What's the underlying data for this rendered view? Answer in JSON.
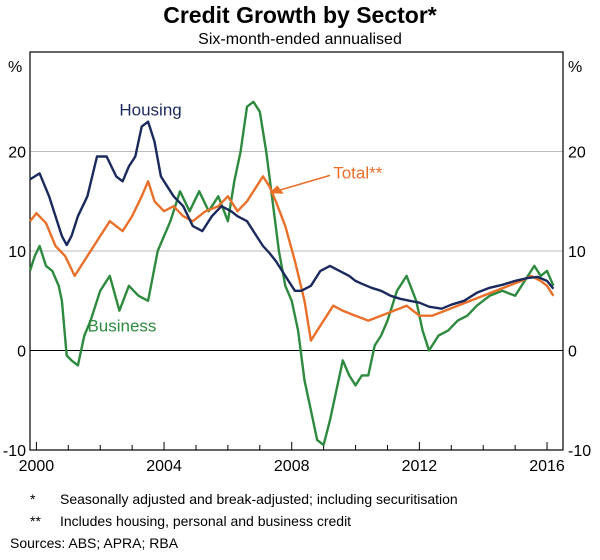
{
  "chart_data": {
    "type": "line",
    "title": "Credit Growth by Sector*",
    "subtitle": "Six-month-ended annualised",
    "ylabel_left": "%",
    "ylabel_right": "%",
    "xlim": [
      1999.8,
      2016.5
    ],
    "ylim": [
      -10,
      30
    ],
    "x_ticks": [
      2000,
      2004,
      2008,
      2012,
      2016
    ],
    "y_ticks": [
      -10,
      0,
      10,
      20
    ],
    "grid": true,
    "series": [
      {
        "name": "Housing",
        "color": "#1b2a5c",
        "x": [
          1999.8,
          2000.1,
          2000.4,
          2000.6,
          2000.8,
          2000.95,
          2001.1,
          2001.3,
          2001.6,
          2001.9,
          2002.2,
          2002.5,
          2002.7,
          2002.9,
          2003.1,
          2003.3,
          2003.5,
          2003.7,
          2003.9,
          2004.1,
          2004.3,
          2004.6,
          2004.9,
          2005.2,
          2005.5,
          2005.8,
          2006.1,
          2006.3,
          2006.6,
          2006.9,
          2007.1,
          2007.3,
          2007.5,
          2007.7,
          2007.9,
          2008.1,
          2008.3,
          2008.6,
          2008.9,
          2009.2,
          2009.5,
          2009.8,
          2010.0,
          2010.2,
          2010.5,
          2010.8,
          2011.1,
          2011.4,
          2011.7,
          2012.0,
          2012.3,
          2012.7,
          2013.0,
          2013.4,
          2013.8,
          2014.2,
          2014.6,
          2015.0,
          2015.4,
          2015.7,
          2016.0,
          2016.2
        ],
        "y": [
          17.2,
          17.8,
          15.5,
          13.5,
          11.5,
          10.6,
          11.5,
          13.5,
          15.5,
          19.5,
          19.5,
          17.5,
          17.0,
          18.5,
          19.5,
          22.5,
          23.0,
          21.0,
          17.5,
          16.5,
          15.5,
          14.5,
          12.5,
          12.0,
          13.5,
          14.5,
          14.0,
          13.5,
          13.0,
          11.5,
          10.5,
          9.8,
          9.0,
          8.0,
          7.0,
          6.0,
          6.0,
          6.5,
          8.0,
          8.5,
          8.0,
          7.5,
          7.0,
          6.7,
          6.3,
          6.0,
          5.5,
          5.2,
          5.0,
          4.8,
          4.4,
          4.2,
          4.6,
          5.0,
          5.8,
          6.3,
          6.6,
          7.0,
          7.3,
          7.4,
          7.0,
          6.2
        ]
      },
      {
        "name": "Total**",
        "color": "#e8702a",
        "x": [
          1999.8,
          2000.0,
          2000.3,
          2000.6,
          2000.9,
          2001.2,
          2001.6,
          2001.9,
          2002.3,
          2002.7,
          2003.0,
          2003.3,
          2003.5,
          2003.7,
          2004.0,
          2004.3,
          2004.6,
          2004.9,
          2005.3,
          2005.7,
          2006.0,
          2006.3,
          2006.6,
          2006.9,
          2007.1,
          2007.3,
          2007.5,
          2007.8,
          2008.1,
          2008.4,
          2008.6,
          2008.8,
          2009.0,
          2009.3,
          2009.6,
          2010.0,
          2010.4,
          2010.8,
          2011.2,
          2011.6,
          2012.0,
          2012.4,
          2012.8,
          2013.2,
          2013.6,
          2014.0,
          2014.4,
          2014.8,
          2015.2,
          2015.5,
          2015.8,
          2016.0,
          2016.2
        ],
        "y": [
          13.0,
          13.8,
          12.8,
          10.5,
          9.5,
          7.5,
          9.5,
          11.0,
          13.0,
          12.0,
          13.5,
          15.5,
          17.0,
          15.0,
          14.0,
          14.5,
          13.5,
          13.0,
          14.0,
          14.5,
          15.5,
          14.0,
          15.0,
          16.5,
          17.5,
          16.5,
          15.0,
          12.5,
          9.0,
          5.0,
          1.0,
          2.0,
          3.0,
          4.5,
          4.0,
          3.5,
          3.0,
          3.5,
          4.0,
          4.5,
          3.5,
          3.5,
          4.0,
          4.5,
          5.0,
          5.5,
          6.0,
          6.5,
          7.0,
          7.5,
          7.0,
          6.5,
          5.5
        ]
      },
      {
        "name": "Business",
        "color": "#2d8a3e",
        "x": [
          1999.8,
          1999.95,
          2000.1,
          2000.3,
          2000.5,
          2000.7,
          2000.8,
          2000.95,
          2001.1,
          2001.3,
          2001.5,
          2001.7,
          2002.0,
          2002.3,
          2002.6,
          2002.9,
          2003.2,
          2003.5,
          2003.8,
          2004.0,
          2004.2,
          2004.5,
          2004.8,
          2005.1,
          2005.4,
          2005.7,
          2006.0,
          2006.2,
          2006.4,
          2006.6,
          2006.8,
          2007.0,
          2007.2,
          2007.4,
          2007.6,
          2007.8,
          2008.0,
          2008.2,
          2008.4,
          2008.6,
          2008.8,
          2009.0,
          2009.2,
          2009.4,
          2009.6,
          2009.8,
          2010.0,
          2010.2,
          2010.4,
          2010.6,
          2010.8,
          2011.0,
          2011.3,
          2011.6,
          2011.9,
          2012.1,
          2012.3,
          2012.6,
          2012.9,
          2013.2,
          2013.5,
          2013.8,
          2014.2,
          2014.6,
          2015.0,
          2015.3,
          2015.6,
          2015.8,
          2016.0,
          2016.2
        ],
        "y": [
          8.0,
          9.5,
          10.5,
          8.5,
          8.0,
          6.5,
          5.0,
          -0.5,
          -1.0,
          -1.5,
          1.5,
          3.0,
          6.0,
          7.5,
          4.0,
          6.5,
          5.5,
          5.0,
          10.0,
          11.5,
          13.0,
          16.0,
          14.0,
          16.0,
          14.0,
          15.5,
          13.0,
          17.0,
          20.0,
          24.5,
          25.0,
          24.0,
          20.0,
          15.0,
          10.0,
          6.5,
          5.0,
          2.0,
          -3.0,
          -6.0,
          -9.0,
          -9.5,
          -7.0,
          -4.0,
          -1.0,
          -2.5,
          -3.5,
          -2.5,
          -2.5,
          0.5,
          1.5,
          3.0,
          6.0,
          7.5,
          5.0,
          2.0,
          0.0,
          1.5,
          2.0,
          3.0,
          3.5,
          4.5,
          5.5,
          6.0,
          5.5,
          7.0,
          8.5,
          7.5,
          8.0,
          6.5
        ]
      }
    ],
    "annotations": {
      "housing_label": "Housing",
      "total_label": "Total**",
      "business_label": "Business"
    }
  },
  "footnotes": [
    {
      "mark": "*",
      "text": "Seasonally adjusted and break-adjusted; including securitisation"
    },
    {
      "mark": "**",
      "text": "Includes housing, personal and business credit"
    }
  ],
  "sources": "Sources:  ABS; APRA; RBA"
}
